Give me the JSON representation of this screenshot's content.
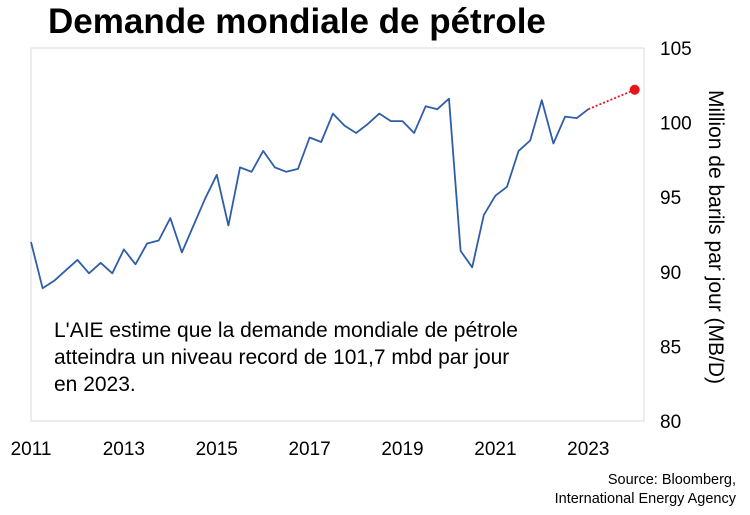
{
  "title": "Demande mondiale de pétrole",
  "annotation": "L'AIE estime que la demande mondiale de pétrole atteindra un niveau record de 101,7 mbd par jour en 2023.",
  "source": [
    "Source: Bloomberg,",
    "International Energy Agency"
  ],
  "chart_data": {
    "type": "line",
    "title": "Demande mondiale de pétrole",
    "ylabel": "Million de barils par jour (MB/D)",
    "xlabel": "",
    "xlim": [
      2011,
      2024.2
    ],
    "ylim": [
      80,
      105
    ],
    "x_ticks": [
      "2011",
      "2013",
      "2015",
      "2017",
      "2019",
      "2021",
      "2023"
    ],
    "y_ticks": [
      "80",
      "85",
      "90",
      "95",
      "100",
      "105"
    ],
    "grid": false,
    "legend": "none",
    "colors": {
      "actual": "#2f5ea8",
      "forecast": "#e8141c"
    },
    "series": [
      {
        "x": [
          2011.0,
          2011.25,
          2011.5,
          2011.75,
          2012.0,
          2012.25,
          2012.5,
          2012.75,
          2013.0,
          2013.25,
          2013.5,
          2013.75,
          2014.0,
          2014.25,
          2014.5,
          2014.75,
          2015.0,
          2015.25,
          2015.5,
          2015.75,
          2016.0,
          2016.25,
          2016.5,
          2016.75,
          2017.0,
          2017.25,
          2017.5,
          2017.75,
          2018.0,
          2018.25,
          2018.5,
          2018.75,
          2019.0,
          2019.25,
          2019.5,
          2019.75,
          2020.0,
          2020.25,
          2020.5,
          2020.75,
          2021.0,
          2021.25,
          2021.5,
          2021.75,
          2022.0,
          2022.25,
          2022.5,
          2022.75,
          2023.0
        ],
        "values": [
          92.0,
          88.9,
          89.4,
          90.1,
          90.8,
          89.9,
          90.6,
          89.9,
          91.5,
          90.5,
          91.9,
          92.1,
          93.6,
          91.3,
          93.1,
          94.9,
          96.5,
          93.1,
          97.0,
          96.7,
          98.1,
          97.0,
          96.7,
          96.9,
          99.0,
          98.7,
          100.6,
          99.8,
          99.3,
          99.9,
          100.6,
          100.1,
          100.1,
          99.3,
          101.1,
          100.9,
          101.6,
          91.4,
          90.3,
          93.8,
          95.1,
          95.7,
          98.1,
          98.8,
          101.5,
          98.6,
          100.4,
          100.3,
          100.9
        ]
      },
      {
        "x": [
          2023.0,
          2024.0
        ],
        "values": [
          100.9,
          102.2
        ]
      }
    ]
  }
}
